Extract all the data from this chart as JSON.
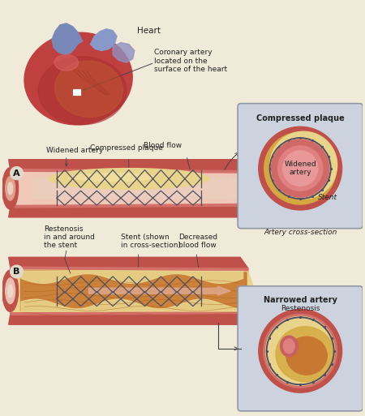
{
  "bg_color": "#f0ead8",
  "panel_A_label": "A",
  "panel_B_label": "B",
  "cross_section_A_title": "Compressed plaque",
  "cross_section_A_sub": "Widened\nartery",
  "cross_section_A_stent": "Stent",
  "cross_section_A_caption": "Artery cross-section",
  "cross_section_B_title": "Narrowed artery",
  "cross_section_B_sub": "Restenosis",
  "heart_label": "Heart",
  "coronary_label": "Coronary artery\nlocated on the\nsurface of the heart",
  "label_widened": "Widened artery",
  "label_blood_flow": "Blood flow",
  "label_compressed": "Compressed plaque",
  "label_restenosis": "Restenosis\nin and around\nthe stent",
  "label_stent": "Stent (shown\nin cross-section)",
  "label_decreased": "Decreased\nblood flow",
  "artery_outer": "#c0504a",
  "artery_mid": "#d4706a",
  "artery_inner": "#e89888",
  "artery_lumen": "#f0c8b8",
  "plaque_light": "#e8d48a",
  "plaque_gold": "#d4a840",
  "restenosis_dark": "#b05820",
  "restenosis_mid": "#c87830",
  "restenosis_light": "#e0a050",
  "stent_color": "#505060",
  "blood_arrow": "#e8b0a0",
  "box_bg": "#cdd3de",
  "box_edge": "#9098a8",
  "label_color": "#222222",
  "annot_color": "#444444"
}
